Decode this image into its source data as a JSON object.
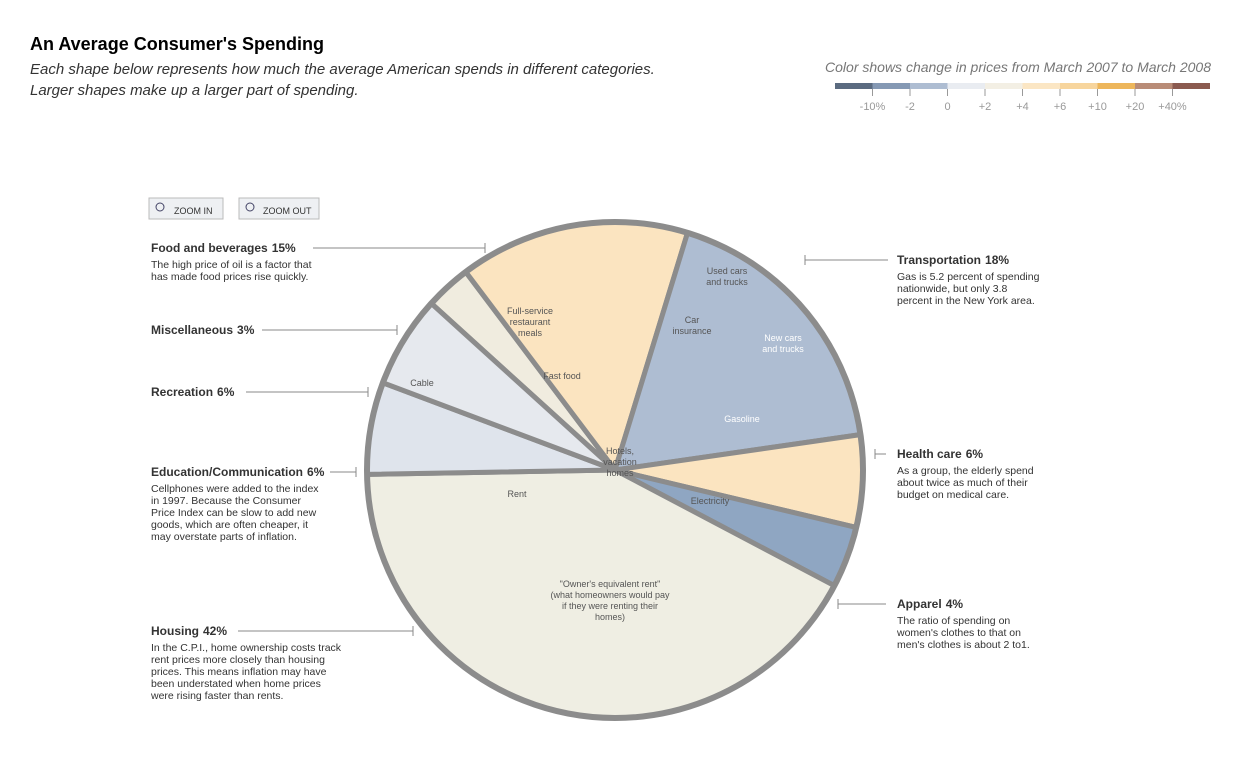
{
  "chart_data": {
    "type": "voronoi-treemap",
    "title": "An Average Consumer's Spending",
    "subtitle": [
      "Each shape below represents how much the average American spends in different categories.",
      "Larger shapes make up a larger part of spending."
    ],
    "legend": {
      "title": "Color shows change in prices from March 2007 to March 2008",
      "colors": [
        "#5b6b80",
        "#8599b4",
        "#aebdd2",
        "#e9ecf1",
        "#f3efe4",
        "#fbe6c4",
        "#f7d59d",
        "#edb65b",
        "#b98c77",
        "#8b5a4f"
      ],
      "ticks": [
        {
          "value": -10,
          "label": "-10%"
        },
        -2,
        0,
        {
          "value": 2,
          "label": "+2"
        },
        {
          "value": 4,
          "label": "+4"
        },
        {
          "value": 6,
          "label": "+6"
        },
        {
          "value": 10,
          "label": "+10"
        },
        {
          "value": 20,
          "label": "+20"
        },
        {
          "value": 40,
          "label": "+40%"
        }
      ]
    },
    "controls": [
      "ZOOM IN",
      "ZOOM OUT"
    ],
    "categories": [
      "Miscellaneous",
      "Food and beverages",
      "Transportation",
      "Health care",
      "Apparel",
      "Housing",
      "Education/Communication",
      "Recreation"
    ],
    "values": [
      3,
      15,
      18,
      6,
      4,
      42,
      6,
      6
    ],
    "value_labels": [
      "3%",
      "15%",
      "18%",
      "6%",
      "4%",
      "42%",
      "6%",
      "6%"
    ],
    "colors": [
      "#f0ecdf",
      "#fbe4c0",
      "#aebdd2",
      "#fbe4c0",
      "#8fa6c2",
      "#efeee3",
      "#dfe4ec",
      "#e6e9ee"
    ],
    "notes": [
      null,
      [
        "The high price of oil is a factor that",
        "has made food prices rise quickly."
      ],
      [
        "Gas is 5.2 percent of spending",
        "nationwide, but only 3.8",
        "percent in the New York area."
      ],
      [
        "As a group, the elderly spend",
        "about twice as much of their",
        "budget on medical care."
      ],
      [
        "The ratio of spending on",
        "women's clothes to that on",
        "men's clothes is about 2 to1."
      ],
      [
        "In the C.P.I., home ownership costs track",
        "rent prices more closely than housing",
        "prices. This means inflation may have",
        "been understated when home prices",
        "were rising faster than rents."
      ],
      [
        "Cellphones were added to the index",
        "in 1997. Because the Consumer",
        "Price Index can be slow to add new",
        "goods, which are often cheaper,  it",
        "may overstate parts of inflation."
      ],
      null
    ],
    "cell_labels": [
      [
        "Full-service",
        "restaurant",
        "meals"
      ],
      [
        "Fast food"
      ],
      [
        "Cable"
      ],
      [
        "Used cars",
        "and trucks"
      ],
      [
        "Car",
        "insurance"
      ],
      [
        "New cars",
        "and trucks"
      ],
      [
        "Gasoline"
      ],
      [
        "Hotels,",
        "vacation",
        "homes"
      ],
      [
        "Rent"
      ],
      [
        "Electricity"
      ],
      [
        "\"Owner's equivalent rent\"",
        "(what homeowners would pay",
        "if they were renting their",
        "homes)"
      ]
    ]
  }
}
